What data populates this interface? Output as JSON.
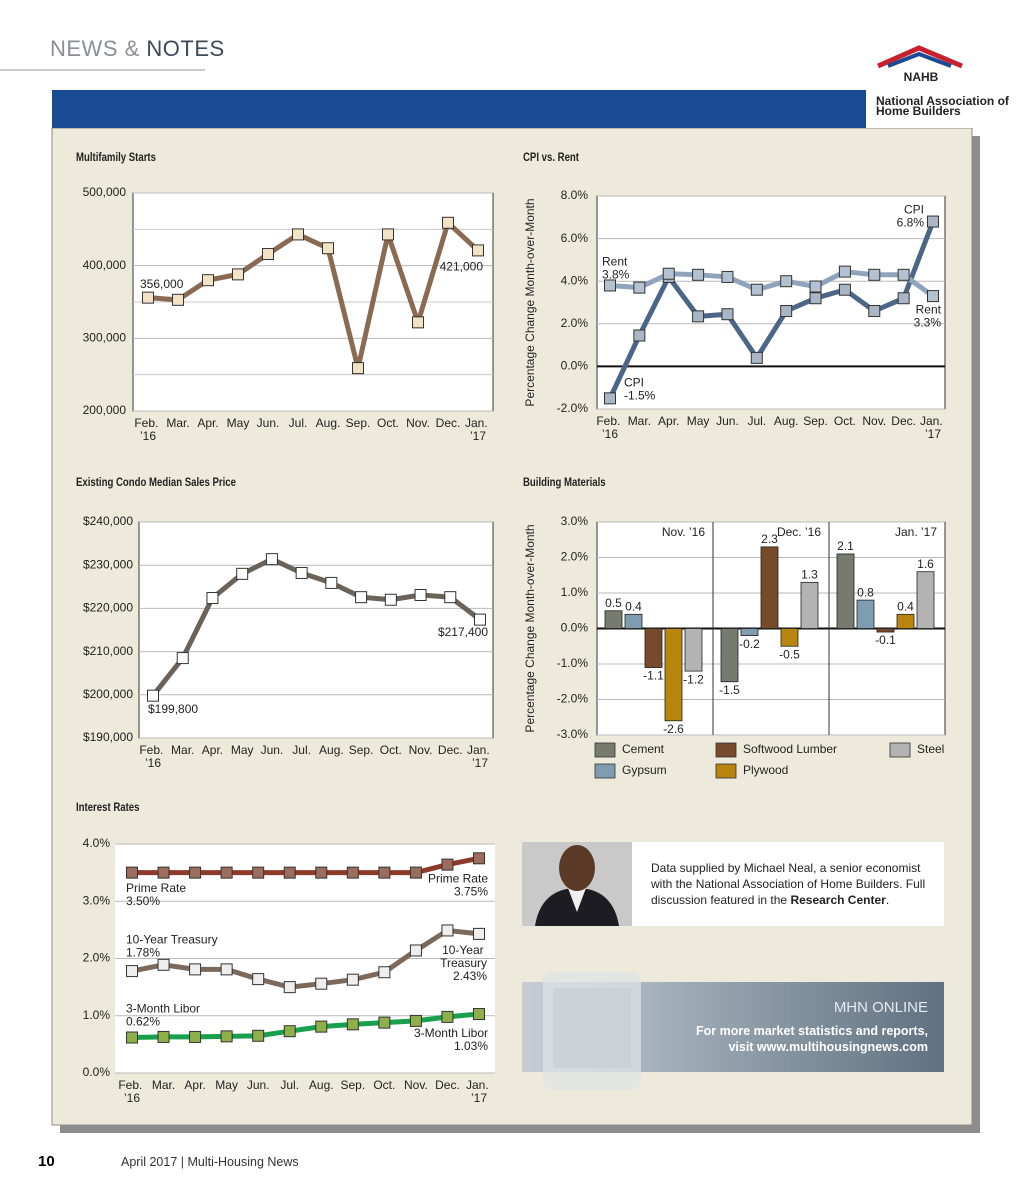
{
  "header": {
    "section_1": "NEWS &",
    "section_2": "NOTES"
  },
  "logo": {
    "name": "NAHB",
    "full": "National Association of Home Builders"
  },
  "chart_data": [
    {
      "type": "line",
      "title": "Multifamily Starts",
      "categories": [
        "Feb. ’16",
        "Mar.",
        "Apr.",
        "May",
        "Jun.",
        "Jul.",
        "Aug.",
        "Sep.",
        "Oct.",
        "Nov.",
        "Dec.",
        "Jan. ’17"
      ],
      "values": [
        356000,
        353000,
        380000,
        388000,
        416000,
        443000,
        424000,
        259000,
        443000,
        322000,
        459000,
        421000
      ],
      "value_labels": [
        "356,000",
        null,
        null,
        null,
        null,
        null,
        null,
        null,
        null,
        null,
        null,
        "421,000"
      ],
      "color": "#8a6a52",
      "marker_color": "#f1e3c4",
      "ylim": [
        200000,
        500000
      ],
      "yticks": [
        {
          "value": 200000,
          "label": "200,000"
        },
        {
          "value": 300000,
          "label": "300,000"
        },
        {
          "value": 400000,
          "label": "400,000"
        },
        {
          "value": 500000,
          "label": "500,000"
        }
      ],
      "minor_yticks": [
        250000,
        350000,
        450000
      ],
      "grid": true
    },
    {
      "type": "line",
      "title": "CPI vs. Rent",
      "y_label": "Percentage Change Month-over-Month",
      "categories": [
        "Feb. ’16",
        "Mar.",
        "Apr.",
        "May",
        "Jun.",
        "Jul.",
        "Aug.",
        "Sep.",
        "Oct.",
        "Nov.",
        "Dec.",
        "Jan. ’17"
      ],
      "series": [
        {
          "name": "Rent",
          "color": "#8fa3bc",
          "marker_color": "#b4c1d1",
          "values": [
            3.8,
            3.7,
            4.35,
            4.3,
            4.2,
            3.6,
            4.0,
            3.75,
            4.45,
            4.3,
            4.3,
            3.3
          ],
          "value_labels": [
            "3.8%",
            null,
            null,
            null,
            null,
            null,
            null,
            null,
            null,
            null,
            null,
            "3.3%"
          ]
        },
        {
          "name": "CPI",
          "color": "#4c6688",
          "marker_color": "#a9b6c6",
          "values": [
            -1.5,
            1.45,
            4.2,
            2.35,
            2.45,
            0.4,
            2.6,
            3.2,
            3.6,
            2.6,
            3.2,
            6.8
          ],
          "value_labels": [
            "-1.5%",
            null,
            null,
            null,
            null,
            null,
            null,
            null,
            null,
            null,
            null,
            "6.8%"
          ]
        }
      ],
      "ylim": [
        -2,
        8
      ],
      "yticks": [
        {
          "value": -2,
          "label": "-2.0%"
        },
        {
          "value": 0,
          "label": "0.0%"
        },
        {
          "value": 2,
          "label": "2.0%"
        },
        {
          "value": 4,
          "label": "4.0%"
        },
        {
          "value": 6,
          "label": "6.0%"
        },
        {
          "value": 8,
          "label": "8.0%"
        }
      ],
      "grid": true,
      "zero_line": true
    },
    {
      "type": "line",
      "title": "Existing Condo Median Sales Price",
      "categories": [
        "Feb. ’16",
        "Mar.",
        "Apr.",
        "May",
        "Jun.",
        "Jul.",
        "Aug.",
        "Sep.",
        "Oct.",
        "Nov.",
        "Dec.",
        "Jan. ’17"
      ],
      "values": [
        199800,
        208500,
        222400,
        228000,
        231400,
        228200,
        225900,
        222600,
        222000,
        223100,
        222600,
        217400
      ],
      "value_labels": [
        "$199,800",
        null,
        null,
        null,
        null,
        null,
        null,
        null,
        null,
        null,
        null,
        "$217,400"
      ],
      "color": "#6b6259",
      "marker_color": "#ffffff",
      "ylim": [
        190000,
        240000
      ],
      "yticks": [
        {
          "value": 190000,
          "label": "$190,000"
        },
        {
          "value": 200000,
          "label": "$200,000"
        },
        {
          "value": 210000,
          "label": "$210,000"
        },
        {
          "value": 220000,
          "label": "$220,000"
        },
        {
          "value": 230000,
          "label": "$230,000"
        },
        {
          "value": 240000,
          "label": "$240,000"
        }
      ],
      "grid": true
    },
    {
      "type": "grouped_bar",
      "title": "Building Materials",
      "y_label": "Percentage Change Month-over-Month",
      "categories": [
        "Nov. ’16",
        "Dec. ’16",
        "Jan. ’17"
      ],
      "series": [
        {
          "name": "Cement",
          "color": "#777a6e",
          "values": [
            0.5,
            -1.5,
            2.1
          ]
        },
        {
          "name": "Gypsum",
          "color": "#7f9db0",
          "values": [
            0.4,
            -0.2,
            0.8
          ]
        },
        {
          "name": "Softwood Lumber",
          "color": "#774a2c",
          "values": [
            -1.1,
            2.3,
            -0.1
          ]
        },
        {
          "name": "Plywood",
          "color": "#b8860f",
          "values": [
            -2.6,
            -0.5,
            0.4
          ]
        },
        {
          "name": "Steel",
          "color": "#b3b3b3",
          "values": [
            -1.2,
            1.3,
            1.6
          ]
        }
      ],
      "ylim": [
        -3,
        3
      ],
      "yticks": [
        {
          "value": -3,
          "label": "-3.0%"
        },
        {
          "value": -2,
          "label": "-2.0%"
        },
        {
          "value": -1,
          "label": "-1.0%"
        },
        {
          "value": 0,
          "label": "0.0%"
        },
        {
          "value": 1,
          "label": "1.0%"
        },
        {
          "value": 2,
          "label": "2.0%"
        },
        {
          "value": 3,
          "label": "3.0%"
        }
      ],
      "grid": true,
      "zero_line": true
    },
    {
      "type": "line",
      "title": "Interest Rates",
      "categories": [
        "Feb. ’16",
        "Mar.",
        "Apr.",
        "May",
        "Jun.",
        "Jul.",
        "Aug.",
        "Sep.",
        "Oct.",
        "Nov.",
        "Dec.",
        "Jan. ’17"
      ],
      "series": [
        {
          "name": "Prime Rate",
          "color": "#8d3a2a",
          "marker_color": "#9c6c5c",
          "values": [
            3.5,
            3.5,
            3.5,
            3.5,
            3.5,
            3.5,
            3.5,
            3.5,
            3.5,
            3.5,
            3.64,
            3.75
          ],
          "value_labels": [
            "3.50%",
            null,
            null,
            null,
            null,
            null,
            null,
            null,
            null,
            null,
            null,
            "3.75%"
          ]
        },
        {
          "name": "10-Year Treasury",
          "color": "#7b6a5c",
          "marker_color": "#eeeeee",
          "values": [
            1.78,
            1.89,
            1.81,
            1.81,
            1.64,
            1.5,
            1.56,
            1.63,
            1.76,
            2.14,
            2.49,
            2.43
          ],
          "value_labels": [
            "1.78%",
            null,
            null,
            null,
            null,
            null,
            null,
            null,
            null,
            null,
            null,
            "2.43%"
          ]
        },
        {
          "name": "3-Month Libor",
          "color": "#18a04c",
          "marker_color": "#8db04a",
          "values": [
            0.62,
            0.63,
            0.63,
            0.64,
            0.65,
            0.73,
            0.81,
            0.85,
            0.88,
            0.91,
            0.98,
            1.03
          ],
          "value_labels": [
            "0.62%",
            null,
            null,
            null,
            null,
            null,
            null,
            null,
            null,
            null,
            null,
            "1.03%"
          ]
        }
      ],
      "ylim": [
        0,
        4
      ],
      "yticks": [
        {
          "value": 0,
          "label": "0.0%"
        },
        {
          "value": 1,
          "label": "1.0%"
        },
        {
          "value": 2,
          "label": "2.0%"
        },
        {
          "value": 3,
          "label": "3.0%"
        },
        {
          "value": 4,
          "label": "4.0%"
        }
      ],
      "grid": true
    }
  ],
  "credit": {
    "text": "Data supplied by Michael Neal, a senior economist with the National Association of Home Builders. Full discussion featured in the",
    "link": "Research Center",
    "end": "."
  },
  "promo": {
    "title": "MHN ONLINE",
    "text": "For more market statistics and reports, visit www.multihousingnews.com"
  },
  "footer": {
    "page": "10",
    "issue": "April 2017 | Multi-Housing News"
  }
}
